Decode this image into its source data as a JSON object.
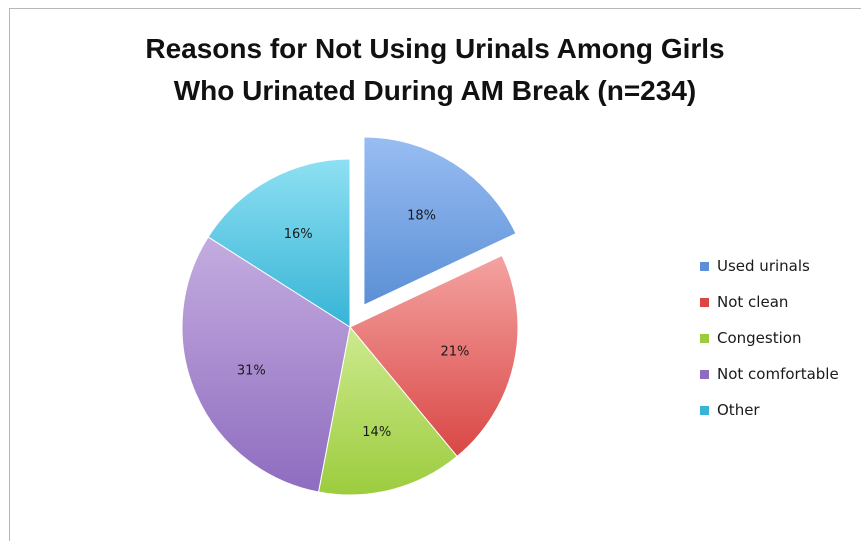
{
  "chart_data": {
    "type": "pie",
    "title": "Reasons for Not Using Urinals Among Girls Who Urinated During AM Break (n=234)",
    "title_lines": [
      "Reasons for Not Using Urinals Among Girls",
      "Who Urinated During AM Break (n=234)"
    ],
    "slices": [
      {
        "label": "Used urinals",
        "value": 18,
        "data_label": "18%",
        "color": "#5b8fd6",
        "color_light": "#98bdf2",
        "exploded": true
      },
      {
        "label": "Not clean",
        "value": 21,
        "data_label": "21%",
        "color": "#d94745",
        "color_light": "#f4a3a1",
        "exploded": false
      },
      {
        "label": "Congestion",
        "value": 14,
        "data_label": "14%",
        "color": "#9ccc3e",
        "color_light": "#cdea8e",
        "exploded": false
      },
      {
        "label": "Not comfortable",
        "value": 31,
        "data_label": "31%",
        "color": "#8e6cc0",
        "color_light": "#c4acdf",
        "exploded": false
      },
      {
        "label": "Other",
        "value": 16,
        "data_label": "16%",
        "color": "#37b4d6",
        "color_light": "#8ee0f2",
        "exploded": false
      }
    ],
    "legend_position": "right"
  }
}
